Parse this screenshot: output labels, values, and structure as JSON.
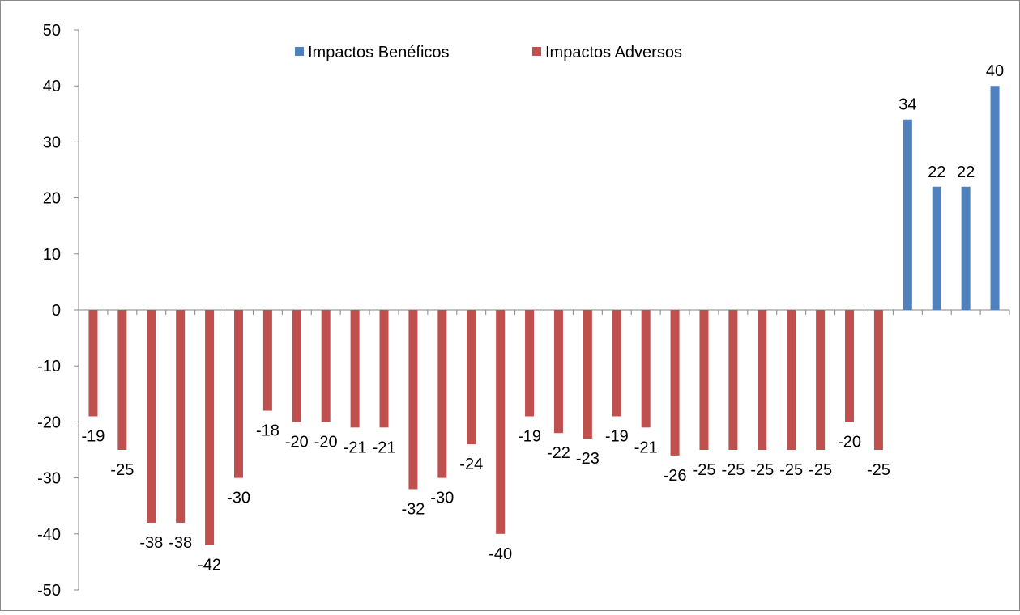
{
  "chart_data": {
    "type": "bar",
    "title": "",
    "xlabel": "",
    "ylabel": "",
    "ylim": [
      -50,
      50
    ],
    "y_ticks": [
      50,
      40,
      30,
      20,
      10,
      0,
      -10,
      -20,
      -30,
      -40,
      -50
    ],
    "grid": false,
    "legend_position": "top-center",
    "series": [
      {
        "name": "Impactos Benéficos",
        "color": "#4f81bd",
        "values": [
          null,
          null,
          null,
          null,
          null,
          null,
          null,
          null,
          null,
          null,
          null,
          null,
          null,
          null,
          null,
          null,
          null,
          null,
          null,
          null,
          null,
          null,
          null,
          null,
          null,
          null,
          null,
          null,
          34,
          22,
          22,
          40
        ]
      },
      {
        "name": "Impactos Adversos",
        "color": "#c0504d",
        "values": [
          -19,
          -25,
          -38,
          -38,
          -42,
          -30,
          -18,
          -20,
          -20,
          -21,
          -21,
          -32,
          -30,
          -24,
          -40,
          -19,
          -22,
          -23,
          -19,
          -21,
          -26,
          -25,
          -25,
          -25,
          -25,
          -25,
          -20,
          -25,
          null,
          null,
          null,
          null
        ]
      }
    ],
    "data_labels": [
      "-19",
      "-25",
      "-38",
      "-38",
      "-42",
      "-30",
      "-18",
      "-20",
      "-20",
      "-21",
      "-21",
      "-32",
      "-30",
      "-24",
      "-40",
      "-19",
      "-22",
      "-23",
      "-19",
      "-21",
      "-26",
      "-25",
      "-25",
      "-25",
      "-25",
      "-25",
      "-20",
      "-25",
      "34",
      "22",
      "22",
      "40"
    ]
  }
}
